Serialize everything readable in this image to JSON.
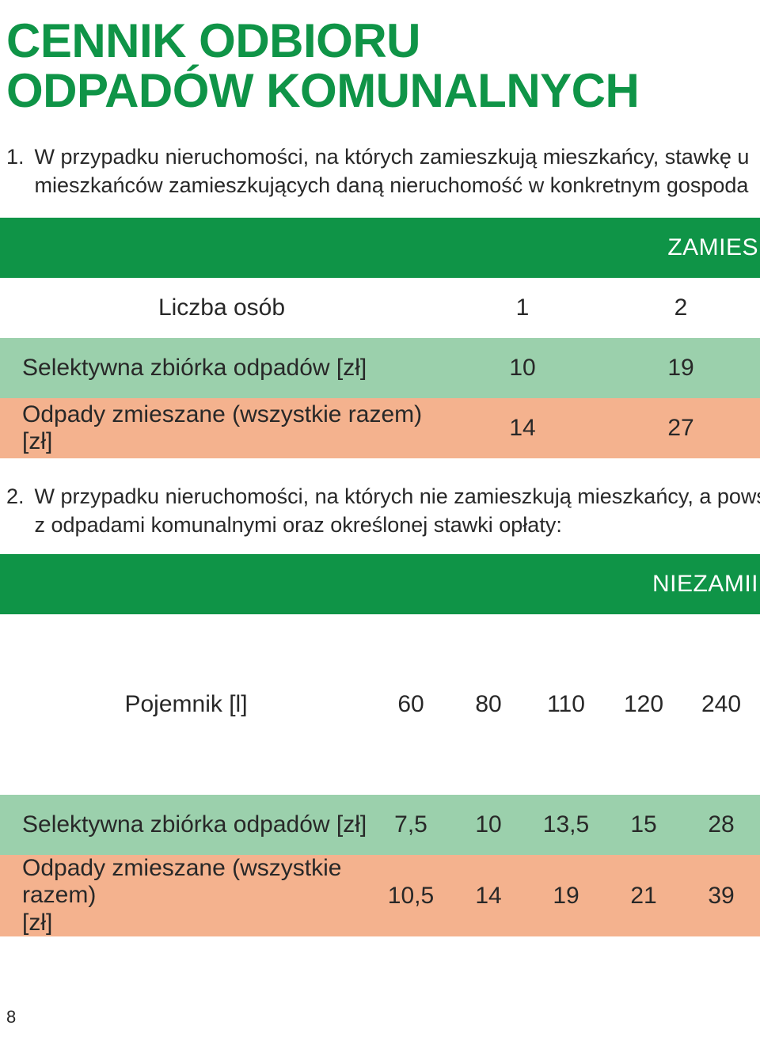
{
  "colors": {
    "title_green": "#0f9447",
    "band_green": "#0f9447",
    "band_text": "#ffffff",
    "row_green_bg": "#9bd0ac",
    "row_orange_bg": "#f4b28e",
    "body_text": "#282828"
  },
  "title_line1": "CENNIK ODBIORU",
  "title_line2": "ODPADÓW KOMUNALNYCH",
  "section1": {
    "number": "1.",
    "text_line1": "W przypadku nieruchomości, na których zamieszkują mieszkańcy, stawkę u",
    "text_line2": "mieszkańców zamieszkujących daną nieruchomość w konkretnym gospoda",
    "band_label": "ZAMIES",
    "table": {
      "header_label": "Liczba osób",
      "header_values": [
        "1",
        "2"
      ],
      "rows": [
        {
          "label": "Selektywna zbiórka odpadów [zł]",
          "values": [
            "10",
            "19"
          ],
          "bg_key": "row_green_bg"
        },
        {
          "label": "Odpady zmieszane (wszystkie razem) [zł]",
          "values": [
            "14",
            "27"
          ],
          "bg_key": "row_orange_bg"
        }
      ],
      "col_widths": {
        "label": 560,
        "values": [
          200,
          200
        ]
      }
    }
  },
  "section2": {
    "number": "2.",
    "text_line1": "W przypadku nieruchomości, na których nie zamieszkują mieszkańcy, a pows",
    "text_line2": "z odpadami komunalnymi oraz określonej stawki opłaty:",
    "band_label": "NIEZAMII",
    "table": {
      "header_label": "Pojemnik [l]",
      "header_values": [
        "60",
        "80",
        "110",
        "120",
        "240"
      ],
      "rows": [
        {
          "label": "Selektywna zbiórka odpadów [zł]",
          "values": [
            "7,5",
            "10",
            "13,5",
            "15",
            "28"
          ],
          "bg_key": "row_green_bg"
        },
        {
          "label": "Odpady zmieszane (wszystkie razem)\n[zł]",
          "values": [
            "10,5",
            "14",
            "19",
            "21",
            "39"
          ],
          "bg_key": "row_orange_bg"
        }
      ],
      "col_widths": {
        "label": 470,
        "values": [
          98,
          98,
          98,
          98,
          98
        ]
      }
    }
  },
  "page_number": "8"
}
